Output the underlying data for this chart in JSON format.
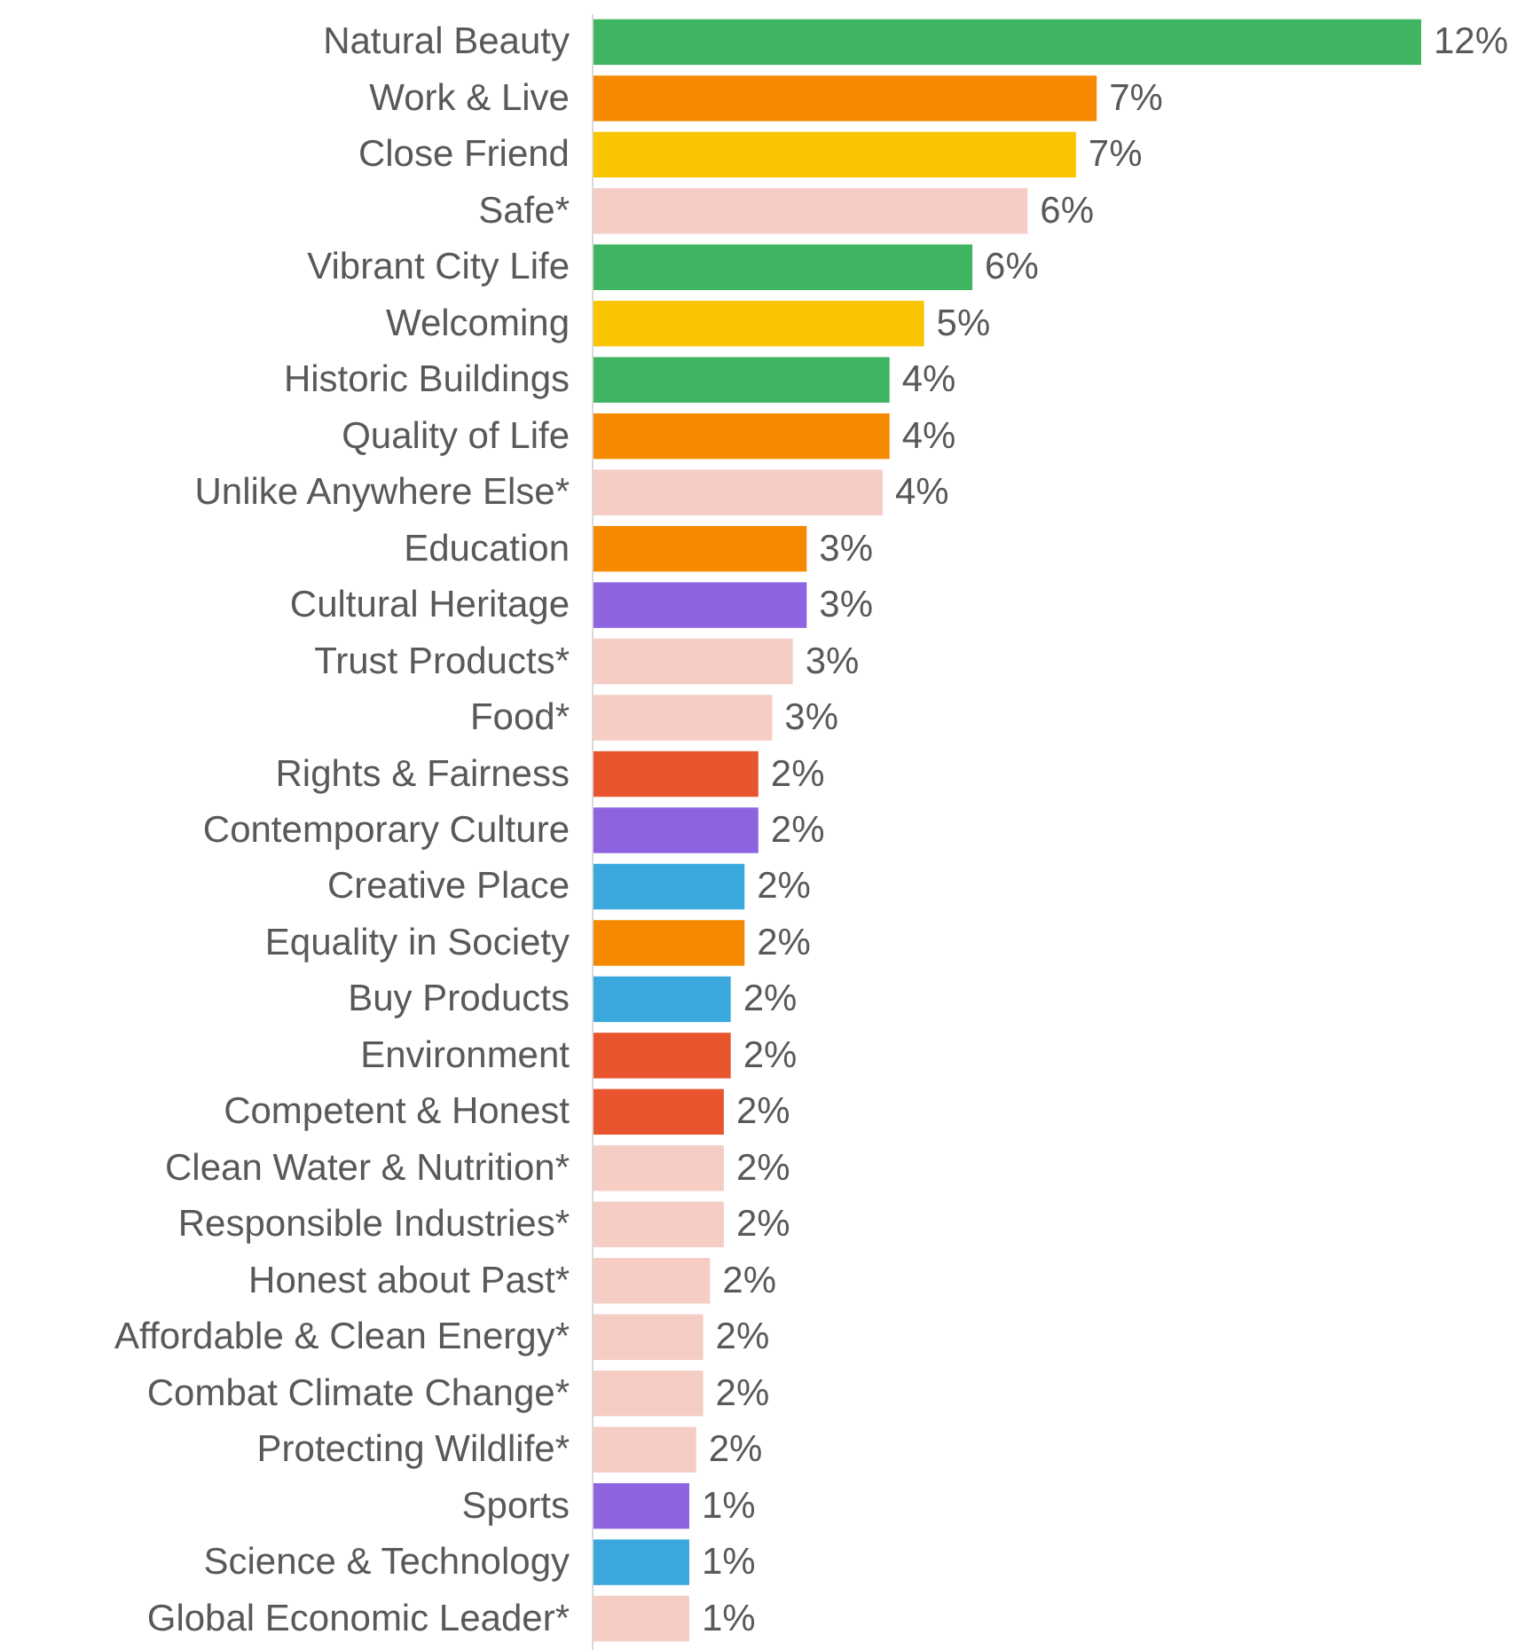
{
  "chart_data": {
    "type": "bar",
    "orientation": "horizontal",
    "categories": [
      "Natural Beauty",
      "Work & Live",
      "Close Friend",
      "Safe*",
      "Vibrant City Life",
      "Welcoming",
      "Historic Buildings",
      "Quality of Life",
      "Unlike Anywhere Else*",
      "Education",
      "Cultural Heritage",
      "Trust Products*",
      "Food*",
      "Rights & Fairness",
      "Contemporary Culture",
      "Creative Place",
      "Equality in Society",
      "Buy Products",
      "Environment",
      "Competent & Honest",
      "Clean Water & Nutrition*",
      "Responsible Industries*",
      "Honest about Past*",
      "Affordable & Clean Energy*",
      "Combat Climate Change*",
      "Protecting Wildlife*",
      "Sports",
      "Science & Technology",
      "Global Economic Leader*"
    ],
    "values": [
      12.0,
      7.3,
      7.0,
      6.3,
      5.5,
      4.8,
      4.3,
      4.3,
      4.2,
      3.1,
      3.1,
      2.9,
      2.6,
      2.4,
      2.4,
      2.2,
      2.2,
      2.0,
      2.0,
      1.9,
      1.9,
      1.9,
      1.7,
      1.6,
      1.6,
      1.5,
      1.4,
      1.4,
      1.4
    ],
    "value_labels": [
      "12%",
      "7%",
      "7%",
      "6%",
      "6%",
      "5%",
      "4%",
      "4%",
      "4%",
      "3%",
      "3%",
      "3%",
      "3%",
      "2%",
      "2%",
      "2%",
      "2%",
      "2%",
      "2%",
      "2%",
      "2%",
      "2%",
      "2%",
      "2%",
      "2%",
      "2%",
      "1%",
      "1%",
      "1%"
    ],
    "colors": [
      "#3fb562",
      "#f58a00",
      "#f9c500",
      "#f5cdc4",
      "#3fb562",
      "#f9c500",
      "#3fb562",
      "#f58a00",
      "#f5cdc4",
      "#f58a00",
      "#8e63e0",
      "#f5cdc4",
      "#f5cdc4",
      "#e8542e",
      "#8e63e0",
      "#3aa8dc",
      "#f58a00",
      "#3aa8dc",
      "#e8542e",
      "#e8542e",
      "#f5cdc4",
      "#f5cdc4",
      "#f5cdc4",
      "#f5cdc4",
      "#f5cdc4",
      "#f5cdc4",
      "#8e63e0",
      "#3aa8dc",
      "#f5cdc4"
    ]
  }
}
